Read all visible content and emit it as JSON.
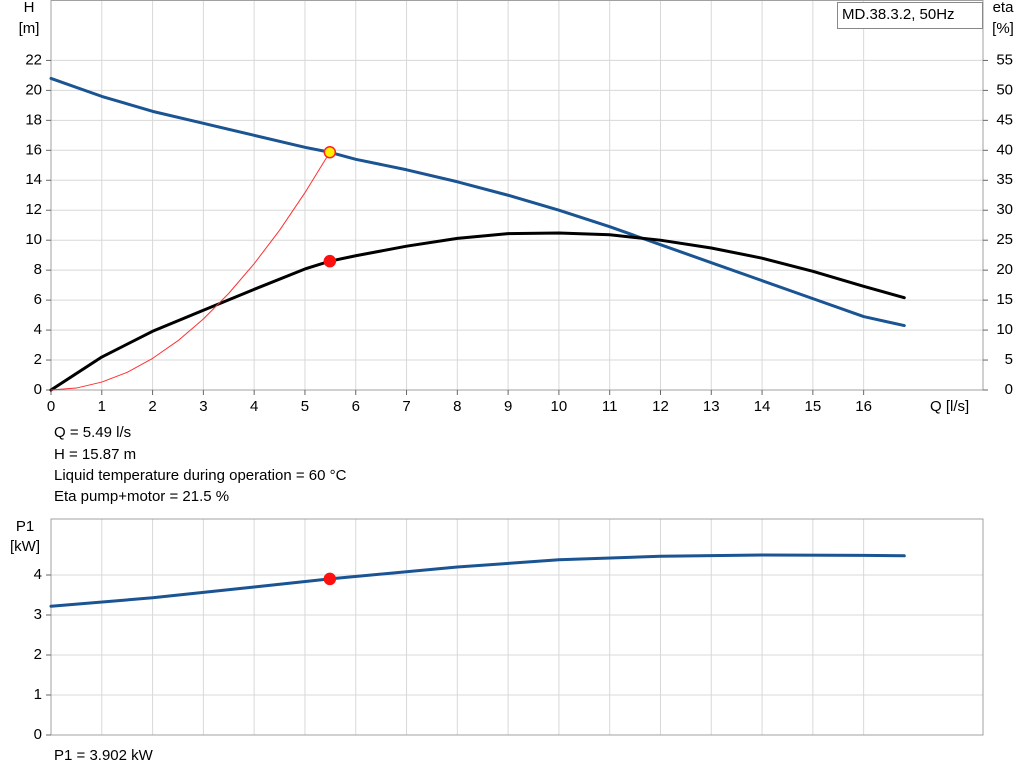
{
  "chart_data": [
    {
      "type": "line",
      "title": "MD.38.3.2, 50Hz",
      "ylabel": [
        "H",
        "[m]"
      ],
      "y2label": [
        "eta",
        "[%]"
      ],
      "xlabel": "Q [l/s]",
      "xlim": [
        0,
        18.35
      ],
      "xticks": [
        0,
        1,
        2,
        3,
        4,
        5,
        6,
        7,
        8,
        9,
        10,
        11,
        12,
        13,
        14,
        15,
        16
      ],
      "ylim": [
        0,
        26
      ],
      "yticks": [
        0,
        2,
        4,
        6,
        8,
        10,
        12,
        14,
        16,
        18,
        20,
        22
      ],
      "y2lim": [
        0,
        65
      ],
      "y2ticks": [
        0,
        5,
        10,
        15,
        20,
        25,
        30,
        35,
        40,
        45,
        50,
        55
      ],
      "grid": true,
      "series": [
        {
          "color": "#1b5492",
          "line_width": 3,
          "x": [
            0,
            1,
            2,
            3,
            4,
            5,
            5.49,
            6,
            7,
            8,
            9,
            10,
            11,
            12,
            13,
            14,
            15,
            16,
            16.8
          ],
          "values": [
            20.8,
            19.6,
            18.6,
            17.8,
            17.0,
            16.2,
            15.87,
            15.4,
            14.7,
            13.9,
            13.0,
            12.0,
            10.9,
            9.7,
            8.5,
            7.3,
            6.1,
            4.9,
            4.3
          ]
        },
        {
          "color": "#000000",
          "line_width": 3,
          "axis": "y2",
          "x": [
            0,
            1,
            2,
            3,
            4,
            5,
            5.49,
            6,
            7,
            8,
            9,
            10,
            11,
            12,
            13,
            14,
            15,
            16,
            16.8
          ],
          "values": [
            0,
            5.5,
            9.8,
            13.3,
            16.8,
            20.2,
            21.5,
            22.4,
            24.0,
            25.3,
            26.1,
            26.2,
            25.9,
            25.0,
            23.7,
            22.0,
            19.8,
            17.3,
            15.4
          ]
        },
        {
          "color": "#ff3030",
          "line_width": 1,
          "x": [
            0,
            0.5,
            1,
            1.5,
            2,
            2.5,
            3,
            3.5,
            4,
            4.5,
            5,
            5.49
          ],
          "values": [
            0,
            0.13,
            0.53,
            1.18,
            2.11,
            3.29,
            4.74,
            6.45,
            8.43,
            10.66,
            13.17,
            15.87
          ]
        }
      ],
      "points": [
        {
          "x": 5.49,
          "y": 15.87,
          "color": "#ffee00",
          "stroke": "#ff2020"
        },
        {
          "x": 5.49,
          "y": 21.5,
          "axis": "y2",
          "color": "#ff1010",
          "stroke": "#ff1010"
        }
      ],
      "annotations": [
        "Q = 5.49 l/s",
        "H = 15.87 m",
        "Liquid temperature during operation = 60 °C",
        "Eta pump+motor = 21.5 %"
      ]
    },
    {
      "type": "line",
      "ylabel": [
        "P1",
        "[kW]"
      ],
      "xlim": [
        0,
        18.35
      ],
      "ylim": [
        0,
        5.4
      ],
      "yticks": [
        0,
        1,
        2,
        3,
        4
      ],
      "grid": true,
      "series": [
        {
          "color": "#1b5492",
          "line_width": 3,
          "x": [
            0,
            2,
            4,
            5.49,
            8,
            10,
            12,
            14,
            16,
            16.8
          ],
          "values": [
            3.22,
            3.43,
            3.7,
            3.902,
            4.2,
            4.38,
            4.47,
            4.5,
            4.49,
            4.48
          ]
        }
      ],
      "points": [
        {
          "x": 5.49,
          "y": 3.902,
          "color": "#ff1010",
          "stroke": "#ff1010"
        }
      ],
      "annotations": [
        "P1 = 3.902 kW"
      ]
    }
  ]
}
